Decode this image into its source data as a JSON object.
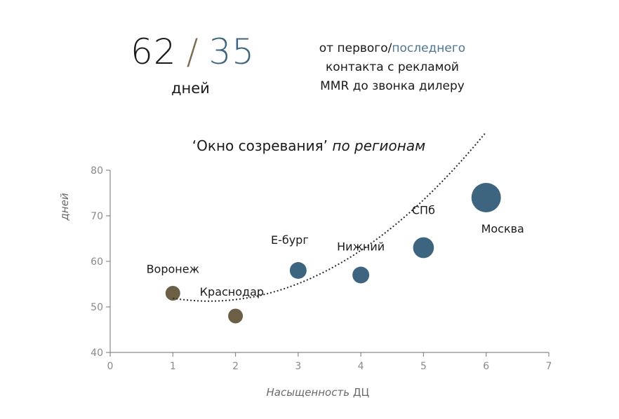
{
  "kpi": {
    "first_value": "62",
    "separator": "/",
    "last_value": "35",
    "unit": "дней"
  },
  "caption": {
    "part1": "от первого/",
    "part2": "последнего",
    "line2": "контакта с рекламой",
    "line3": "MMR до звонка дилеру"
  },
  "colors": {
    "accent": "#3d6580",
    "secondary": "#6b6046",
    "trend": "#2a2a2a",
    "axis": "#8a8a8a"
  },
  "chart_data": {
    "type": "scatter",
    "title_part1": "‘Окно созревания’",
    "title_part2": "по регионам",
    "xlabel_part1": "Насыщенность",
    "xlabel_part2": "ДЦ",
    "ylabel": "дней",
    "xlim": [
      0,
      7
    ],
    "ylim": [
      40,
      80
    ],
    "x_ticks": [
      0,
      1,
      2,
      3,
      4,
      5,
      6,
      7
    ],
    "y_ticks": [
      40,
      50,
      60,
      70,
      80
    ],
    "grid": false,
    "points": [
      {
        "label": "Воронеж",
        "x": 1,
        "y": 53,
        "size": 1.0,
        "color": "#6b6046"
      },
      {
        "label": "Краснодар",
        "x": 2,
        "y": 48,
        "size": 1.0,
        "color": "#6b6046"
      },
      {
        "label": "Е-бург",
        "x": 3,
        "y": 58,
        "size": 1.3,
        "color": "#3d6580"
      },
      {
        "label": "Нижний",
        "x": 4,
        "y": 57,
        "size": 1.3,
        "color": "#3d6580"
      },
      {
        "label": "СПб",
        "x": 5,
        "y": 63,
        "size": 2.0,
        "color": "#3d6580"
      },
      {
        "label": "Москва",
        "x": 6,
        "y": 74,
        "size": 4.0,
        "color": "#3d6580"
      }
    ],
    "trendline": {
      "type": "polynomial",
      "x_range": [
        1,
        6
      ],
      "coefficients": [
        56.0,
        -6.0,
        1.9
      ]
    }
  }
}
